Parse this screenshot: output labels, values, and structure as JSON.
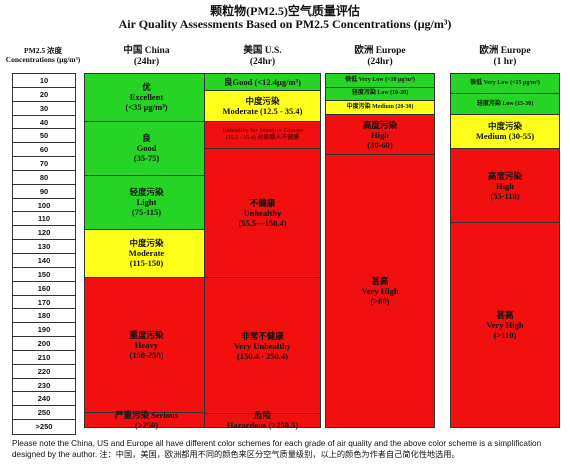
{
  "title_cn": "颗粒物(PM2.5)空气质量评估",
  "title_en": "Air Quality Assessments Based on PM2.5 Concentrations  (μg/m³)",
  "scale": {
    "header_line1": "PM2.5 浓度",
    "header_line2": "Concentrations (μg/m³)",
    "ticks": [
      "10",
      "20",
      "30",
      "40",
      "50",
      "60",
      "70",
      "80",
      "90",
      "100",
      "110",
      "120",
      "130",
      "140",
      "150",
      "160",
      "170",
      "180",
      "190",
      "200",
      "210",
      "220",
      "230",
      "240",
      "250",
      ">250"
    ]
  },
  "columns": [
    {
      "id": "china",
      "name": "中国  China",
      "period": "(24hr)",
      "bands": [
        {
          "from": 0,
          "to": 35,
          "color": "#25d425",
          "lines": [
            "优",
            "Excellent",
            "(<35 μg/m³)"
          ]
        },
        {
          "from": 35,
          "to": 75,
          "color": "#25d425",
          "lines": [
            "良",
            "Good",
            "(35-75)"
          ]
        },
        {
          "from": 75,
          "to": 115,
          "color": "#25d425",
          "lines": [
            "轻度污染",
            "Light",
            "(75-115)"
          ]
        },
        {
          "from": 115,
          "to": 150,
          "color": "#ffff1a",
          "lines": [
            "中度污染",
            "Moderate",
            "(115-150)"
          ]
        },
        {
          "from": 150,
          "to": 250,
          "color": "#f20f0f",
          "lines": [
            "重度污染",
            "Heavy",
            "(150-250)"
          ]
        },
        {
          "from": 250,
          "to": 260,
          "color": "#f20f0f",
          "lines": [
            "严重污染  Serious",
            "(>250)"
          ]
        }
      ]
    },
    {
      "id": "us",
      "name": "美国  U.S.",
      "period": "(24hr)",
      "bands": [
        {
          "from": 0,
          "to": 12.4,
          "color": "#25d425",
          "lines": [
            "良Good (<12.4μg/m³)"
          ]
        },
        {
          "from": 12.4,
          "to": 35.4,
          "color": "#ffff1a",
          "lines": [
            "中度污染",
            "Moderate (12.5 - 35.4)"
          ]
        },
        {
          "from": 35.4,
          "to": 55.4,
          "color": "#f20f0f",
          "small": true,
          "darktext": true,
          "lines": [
            "Unhealthy for Sensitive Groups",
            "(35.5 - 55.4) 对易感人不健康"
          ]
        },
        {
          "from": 55.4,
          "to": 150.4,
          "color": "#f20f0f",
          "lines": [
            "不健康",
            "Unhealthy",
            "(55.5—150.4)"
          ]
        },
        {
          "from": 150.4,
          "to": 250.4,
          "color": "#f20f0f",
          "lines": [
            "非常不健康",
            "Very Unhealthy",
            "(150.4 - 250.4)"
          ]
        },
        {
          "from": 250.4,
          "to": 260,
          "color": "#f20f0f",
          "lines": [
            "危险",
            "Hazardous (>250.5)"
          ]
        }
      ]
    },
    {
      "id": "eu24",
      "name": "欧洲  Europe",
      "period": "(24hr)",
      "bands": [
        {
          "from": 0,
          "to": 10,
          "color": "#25d425",
          "small": true,
          "lines": [
            "很低 Very Low (<10 μg/m³)"
          ]
        },
        {
          "from": 10,
          "to": 20,
          "color": "#25d425",
          "small": true,
          "lines": [
            "轻度污染 Low (10-20)"
          ]
        },
        {
          "from": 20,
          "to": 30,
          "color": "#ffff1a",
          "small": true,
          "lines": [
            "中度污染 Medium (20-30)"
          ]
        },
        {
          "from": 30,
          "to": 60,
          "color": "#f20f0f",
          "lines": [
            "高度污染",
            "High",
            "(30-60)"
          ]
        },
        {
          "from": 60,
          "to": 260,
          "color": "#f20f0f",
          "lines": [
            "甚高",
            "Very High",
            "(>60)"
          ]
        }
      ]
    },
    {
      "id": "eu1",
      "name": "欧洲  Europe",
      "period": "(1 hr)",
      "bands": [
        {
          "from": 0,
          "to": 15,
          "color": "#25d425",
          "small": true,
          "lines": [
            "很低  Very Low (<15 μg/m³)"
          ]
        },
        {
          "from": 15,
          "to": 30,
          "color": "#25d425",
          "small": true,
          "lines": [
            "轻度污染  Low (15-30)"
          ]
        },
        {
          "from": 30,
          "to": 55,
          "color": "#ffff1a",
          "lines": [
            "中度污染",
            "Medium (30-55)"
          ]
        },
        {
          "from": 55,
          "to": 110,
          "color": "#f20f0f",
          "lines": [
            "高度污染",
            "High",
            "(55-110)"
          ]
        },
        {
          "from": 110,
          "to": 260,
          "color": "#f20f0f",
          "lines": [
            "甚高",
            "Very High",
            "(>110)"
          ]
        }
      ]
    }
  ],
  "footer": "Please note the China, US and Europe all have different color schemes for each grade of air quality and the above color scheme is a simplification designed by the author. 注：中国，美国，欧洲都用不同的颜色来区分空气质量级别，以上的颜色为作者自己简化性地选用。"
}
